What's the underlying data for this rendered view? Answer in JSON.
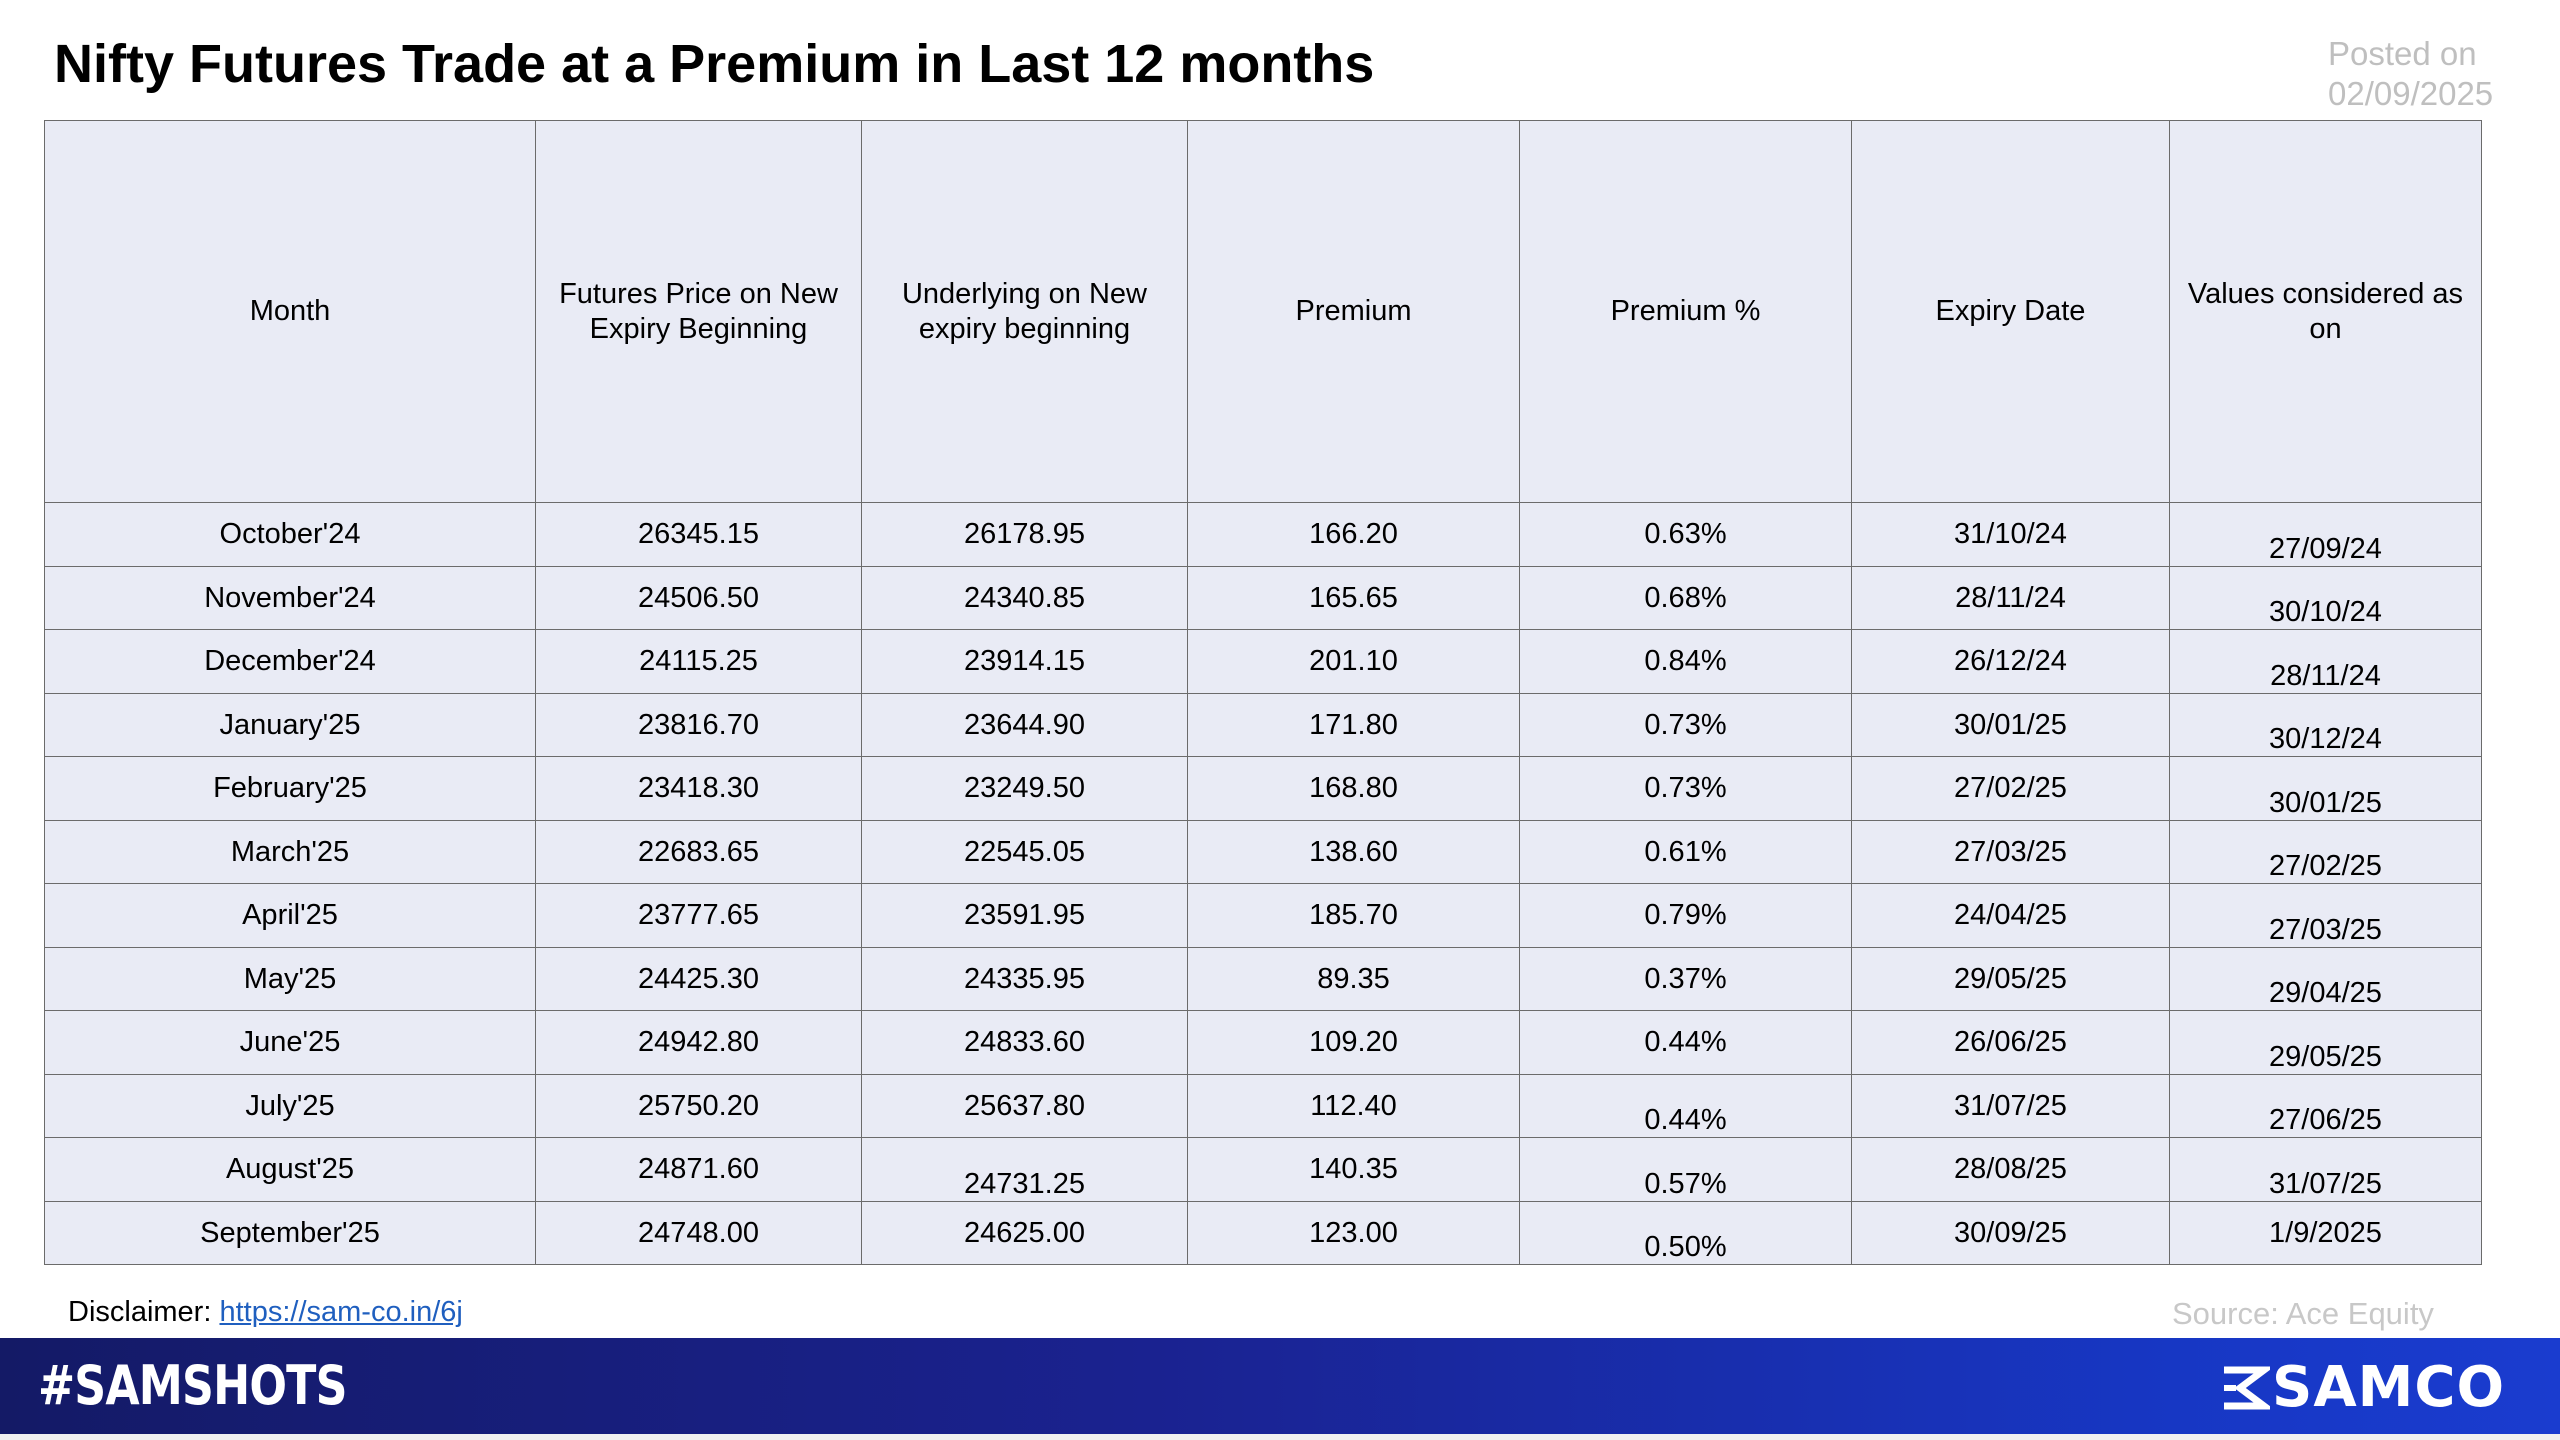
{
  "title": "Nifty Futures Trade at a Premium in Last 12 months",
  "posted": {
    "label": "Posted on",
    "date": "02/09/2025"
  },
  "table": {
    "headers": [
      "Month",
      "Futures Price on New Expiry Beginning",
      "Underlying on New expiry beginning",
      "Premium",
      "Premium %",
      "Expiry Date",
      "Values considered as on"
    ],
    "rows": [
      [
        "October'24",
        "26345.15",
        "26178.95",
        "166.20",
        "0.63%",
        "31/10/24",
        "27/09/24"
      ],
      [
        "November'24",
        "24506.50",
        "24340.85",
        "165.65",
        "0.68%",
        "28/11/24",
        "30/10/24"
      ],
      [
        "December'24",
        "24115.25",
        "23914.15",
        "201.10",
        "0.84%",
        "26/12/24",
        "28/11/24"
      ],
      [
        "January'25",
        "23816.70",
        "23644.90",
        "171.80",
        "0.73%",
        "30/01/25",
        "30/12/24"
      ],
      [
        "February'25",
        "23418.30",
        "23249.50",
        "168.80",
        "0.73%",
        "27/02/25",
        "30/01/25"
      ],
      [
        "March'25",
        "22683.65",
        "22545.05",
        "138.60",
        "0.61%",
        "27/03/25",
        "27/02/25"
      ],
      [
        "April'25",
        "23777.65",
        "23591.95",
        "185.70",
        "0.79%",
        "24/04/25",
        "27/03/25"
      ],
      [
        "May'25",
        "24425.30",
        "24335.95",
        "89.35",
        "0.37%",
        "29/05/25",
        "29/04/25"
      ],
      [
        "June'25",
        "24942.80",
        "24833.60",
        "109.20",
        "0.44%",
        "26/06/25",
        "29/05/25"
      ],
      [
        "July'25",
        "25750.20",
        "25637.80",
        "112.40",
        "0.44%",
        "31/07/25",
        "27/06/25"
      ],
      [
        "August'25",
        "24871.60",
        "24731.25",
        "140.35",
        "0.57%",
        "28/08/25",
        "31/07/25"
      ],
      [
        "September'25",
        "24748.00",
        "24625.00",
        "123.00",
        "0.50%",
        "30/09/25",
        "1/9/2025"
      ]
    ]
  },
  "disclaimer": {
    "label": "Disclaimer:",
    "link_text": "https://sam-co.in/6j"
  },
  "source": "Source: Ace Equity",
  "footer": {
    "hashtag": "#SAMSHOTS",
    "brand": "SAMCO",
    "brand_icon": "samco-logo-icon"
  },
  "colors": {
    "table_cell_background": "#e9ebf5",
    "footer_gradient_start": "#141a66",
    "footer_gradient_end": "#1a3ccf",
    "link": "#1f5fbf",
    "muted_text": "#bfbfbf"
  }
}
